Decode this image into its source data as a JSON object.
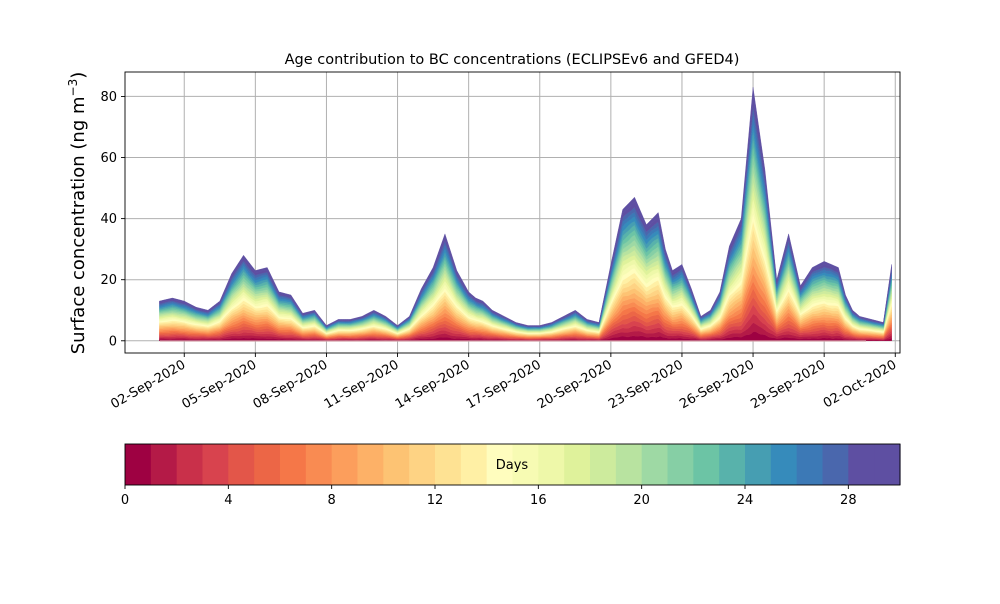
{
  "chart_data": {
    "type": "area",
    "stacked": true,
    "title": "Age contribution to BC concentrations (ECLIPSEv6 and GFED4)",
    "ylabel_main": "Surface concentration (ng m",
    "ylabel_sup": "−3",
    "ylabel_close": ")",
    "ylim": [
      -4,
      88
    ],
    "yticks": [
      0,
      20,
      40,
      60,
      80
    ],
    "x_start": "2020-09-01",
    "xlim_days": [
      -1.5,
      31.2
    ],
    "xticks": [
      {
        "label": "02-Sep-2020",
        "day": 1
      },
      {
        "label": "05-Sep-2020",
        "day": 4
      },
      {
        "label": "08-Sep-2020",
        "day": 7
      },
      {
        "label": "11-Sep-2020",
        "day": 10
      },
      {
        "label": "14-Sep-2020",
        "day": 13
      },
      {
        "label": "17-Sep-2020",
        "day": 16
      },
      {
        "label": "20-Sep-2020",
        "day": 19
      },
      {
        "label": "23-Sep-2020",
        "day": 22
      },
      {
        "label": "26-Sep-2020",
        "day": 25
      },
      {
        "label": "29-Sep-2020",
        "day": 28
      },
      {
        "label": "02-Oct-2020",
        "day": 31
      }
    ],
    "grid": true,
    "total_concentration": {
      "day": [
        -0.05,
        0.5,
        1.0,
        1.5,
        2.0,
        2.5,
        3.0,
        3.5,
        4.0,
        4.5,
        5.0,
        5.5,
        6.0,
        6.5,
        7.0,
        7.5,
        8.0,
        8.5,
        9.0,
        9.5,
        10.0,
        10.5,
        11.0,
        11.5,
        12.0,
        12.5,
        13.0,
        13.3,
        13.6,
        14.0,
        14.5,
        15.0,
        15.5,
        16.0,
        16.5,
        17.0,
        17.5,
        18.0,
        18.5,
        19.0,
        19.5,
        20.0,
        20.5,
        21.0,
        21.3,
        21.6,
        22.0,
        22.4,
        22.8,
        23.2,
        23.6,
        24.0,
        24.5,
        25.0,
        25.5,
        26.0,
        26.5,
        27.0,
        27.5,
        28.0,
        28.3,
        28.6,
        28.9,
        29.2,
        29.5,
        30.0,
        30.5,
        30.85
      ],
      "value": [
        13,
        14,
        13,
        11,
        10,
        13,
        22,
        28,
        23,
        24,
        16,
        15,
        9,
        10,
        5,
        7,
        7,
        8,
        10,
        8,
        5,
        8,
        17,
        24,
        35,
        23,
        16,
        14,
        13,
        10,
        8,
        6,
        5,
        5,
        6,
        8,
        10,
        7,
        6,
        25,
        43,
        47,
        38,
        42,
        30,
        23,
        25,
        17,
        8,
        10,
        16,
        31,
        40,
        83,
        56,
        20,
        35,
        18,
        24,
        26,
        25,
        24,
        15,
        10,
        8,
        7,
        6,
        25
      ]
    },
    "colorbar": {
      "label": "Days",
      "min": 0,
      "max": 30,
      "ticks": [
        0,
        4,
        8,
        12,
        16,
        20,
        24,
        28
      ],
      "bins": 30,
      "colors": [
        "#9e0142",
        "#b41a47",
        "#c9304a",
        "#d8434e",
        "#e35649",
        "#ec6646",
        "#f57748",
        "#f98b52",
        "#fc9e5c",
        "#fdb167",
        "#fdc373",
        "#fed384",
        "#fee293",
        "#fff0a5",
        "#fffdbe",
        "#f7fbb3",
        "#eef8a9",
        "#dff29b",
        "#cdeb9d",
        "#b8e3a0",
        "#9ed9a4",
        "#86cfa5",
        "#6cc4a5",
        "#58b2ab",
        "#469eb2",
        "#368bbb",
        "#3c79b6",
        "#4a67ad",
        "#5e4fa2",
        "#5e4fa2"
      ]
    }
  }
}
